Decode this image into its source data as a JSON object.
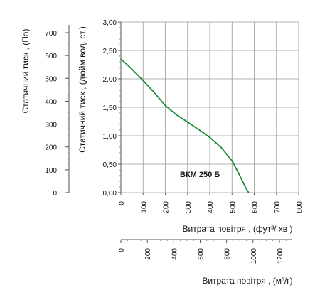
{
  "chart_data": {
    "type": "line",
    "model_label": "ВКМ 250 Б",
    "grid": true,
    "y_left_label": "Статичний тиск , (Па)",
    "y_left_ticks": [
      0,
      100,
      200,
      300,
      400,
      500,
      600,
      700
    ],
    "y_right_label": "Статичний тиск , (дюйм вод. ст.)",
    "y_right_ticks": [
      "0,00",
      "0,50",
      "1,00",
      "1,50",
      "2,00",
      "2,50",
      "3,00"
    ],
    "y_right_ylim": [
      0,
      3.0
    ],
    "x_top_label": "Витрата повітря , (фут³/  хв )",
    "x_top_ticks": [
      0,
      100,
      200,
      300,
      400,
      500,
      600,
      700,
      800
    ],
    "x_top_xlim": [
      0,
      800
    ],
    "x_bottom_label": "Витрата повітря , (м³/г)",
    "x_bottom_ticks": [
      0,
      200,
      400,
      600,
      800,
      1000,
      1200
    ],
    "series": [
      {
        "color": "#1e8a3a",
        "x": [
          0,
          50,
          100,
          150,
          200,
          250,
          300,
          350,
          400,
          450,
          500,
          530,
          560,
          575
        ],
        "y": [
          2.35,
          2.17,
          1.97,
          1.76,
          1.53,
          1.37,
          1.24,
          1.11,
          0.97,
          0.8,
          0.56,
          0.34,
          0.1,
          0.0
        ]
      }
    ]
  }
}
